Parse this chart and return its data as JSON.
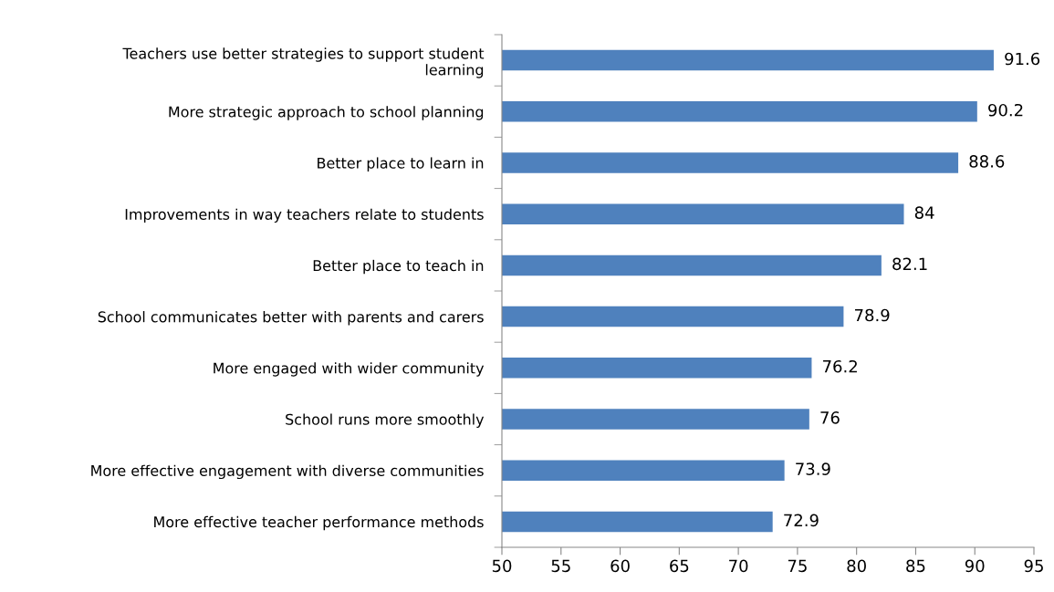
{
  "chart_data": {
    "type": "bar",
    "orientation": "horizontal",
    "categories": [
      "Teachers use better strategies to support student learning",
      "More strategic approach to school planning",
      "Better place to learn in",
      "Improvements in way teachers relate to students",
      "Better place to teach in",
      "School communicates better with parents and carers",
      "More engaged with wider community",
      "School runs more smoothly",
      "More effective engagement with diverse communities",
      "More effective teacher performance methods"
    ],
    "values": [
      91.6,
      90.2,
      88.6,
      84,
      82.1,
      78.9,
      76.2,
      76,
      73.9,
      72.9
    ],
    "color": "#4f81bd",
    "xlim": [
      50,
      95
    ],
    "xticks": [
      50,
      55,
      60,
      65,
      70,
      75,
      80,
      85,
      90,
      95
    ],
    "data_labels": true,
    "grid": false,
    "legend": false
  }
}
